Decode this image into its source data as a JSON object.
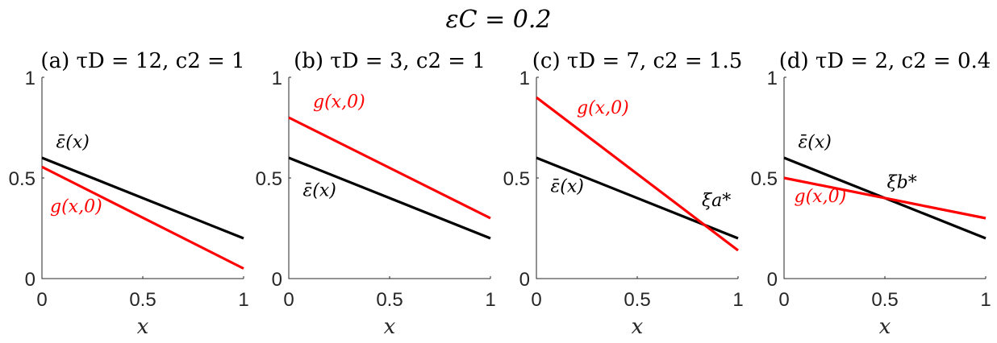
{
  "figure": {
    "title": "εC = 0.2"
  },
  "colors": {
    "black_series": "#000000",
    "red_series": "#ff0000",
    "axes": "#262626"
  },
  "chart_data": [
    {
      "type": "line",
      "title": "(a) τD = 12, c2 = 1",
      "xlabel": "x",
      "ylabel": "",
      "xlim": [
        0,
        1
      ],
      "ylim": [
        0,
        1
      ],
      "xticks": [
        0,
        0.5,
        1
      ],
      "yticks": [
        0,
        0.5,
        1
      ],
      "xtick_labels": [
        "0",
        "0.5",
        "1"
      ],
      "ytick_labels": [
        "0",
        "0.5",
        "1"
      ],
      "grid": false,
      "series": [
        {
          "name": "ε̄(x)",
          "color": "#000000",
          "x": [
            0,
            1
          ],
          "y": [
            0.6,
            0.2
          ]
        },
        {
          "name": "g(x,0)",
          "color": "#ff0000",
          "x": [
            0,
            1
          ],
          "y": [
            0.555,
            0.05
          ]
        }
      ],
      "annotations": [
        {
          "text": "ε̄(x)",
          "x": 0.07,
          "y": 0.65,
          "color": "#000000"
        },
        {
          "text": "g(x,0)",
          "x": 0.04,
          "y": 0.33,
          "color": "#ff0000"
        }
      ]
    },
    {
      "type": "line",
      "title": "(b) τD = 3, c2 = 1",
      "xlabel": "x",
      "ylabel": "",
      "xlim": [
        0,
        1
      ],
      "ylim": [
        0,
        1
      ],
      "xticks": [
        0,
        0.5,
        1
      ],
      "yticks": [
        0,
        0.5,
        1
      ],
      "xtick_labels": [
        "0",
        "0.5",
        "1"
      ],
      "ytick_labels": [
        "0",
        "0.5",
        "1"
      ],
      "grid": false,
      "series": [
        {
          "name": "ε̄(x)",
          "color": "#000000",
          "x": [
            0,
            1
          ],
          "y": [
            0.6,
            0.2
          ]
        },
        {
          "name": "g(x,0)",
          "color": "#ff0000",
          "x": [
            0,
            1
          ],
          "y": [
            0.8,
            0.3
          ]
        }
      ],
      "annotations": [
        {
          "text": "ε̄(x)",
          "x": 0.07,
          "y": 0.41,
          "color": "#000000"
        },
        {
          "text": "g(x,0)",
          "x": 0.12,
          "y": 0.85,
          "color": "#ff0000"
        }
      ]
    },
    {
      "type": "line",
      "title": "(c) τD = 7, c2 = 1.5",
      "xlabel": "x",
      "ylabel": "",
      "xlim": [
        0,
        1
      ],
      "ylim": [
        0,
        1
      ],
      "xticks": [
        0,
        0.5,
        1
      ],
      "yticks": [
        0,
        0.5,
        1
      ],
      "xtick_labels": [
        "0",
        "0.5",
        "1"
      ],
      "ytick_labels": [
        "0",
        "0.5",
        "1"
      ],
      "grid": false,
      "series": [
        {
          "name": "ε̄(x)",
          "color": "#000000",
          "x": [
            0,
            1
          ],
          "y": [
            0.6,
            0.2
          ]
        },
        {
          "name": "g(x,0)",
          "color": "#ff0000",
          "x": [
            0,
            1
          ],
          "y": [
            0.9,
            0.14
          ]
        }
      ],
      "annotations": [
        {
          "text": "ε̄(x)",
          "x": 0.07,
          "y": 0.43,
          "color": "#000000"
        },
        {
          "text": "g(x,0)",
          "x": 0.2,
          "y": 0.82,
          "color": "#ff0000"
        },
        {
          "text": "ξa*",
          "x": 0.82,
          "y": 0.36,
          "color": "#000000"
        }
      ]
    },
    {
      "type": "line",
      "title": "(d) τD = 2, c2 = 0.4",
      "xlabel": "x",
      "ylabel": "",
      "xlim": [
        0,
        1
      ],
      "ylim": [
        0,
        1
      ],
      "xticks": [
        0,
        0.5,
        1
      ],
      "yticks": [
        0,
        0.5,
        1
      ],
      "xtick_labels": [
        "0",
        "0.5",
        "1"
      ],
      "ytick_labels": [
        "0",
        "0.5",
        "1"
      ],
      "grid": false,
      "series": [
        {
          "name": "ε̄(x)",
          "color": "#000000",
          "x": [
            0,
            1
          ],
          "y": [
            0.6,
            0.2
          ]
        },
        {
          "name": "g(x,0)",
          "color": "#ff0000",
          "x": [
            0,
            1
          ],
          "y": [
            0.5,
            0.3
          ]
        }
      ],
      "annotations": [
        {
          "text": "ε̄(x)",
          "x": 0.07,
          "y": 0.65,
          "color": "#000000"
        },
        {
          "text": "g(x,0)",
          "x": 0.05,
          "y": 0.38,
          "color": "#ff0000"
        },
        {
          "text": "ξb*",
          "x": 0.51,
          "y": 0.45,
          "color": "#000000"
        }
      ]
    }
  ]
}
